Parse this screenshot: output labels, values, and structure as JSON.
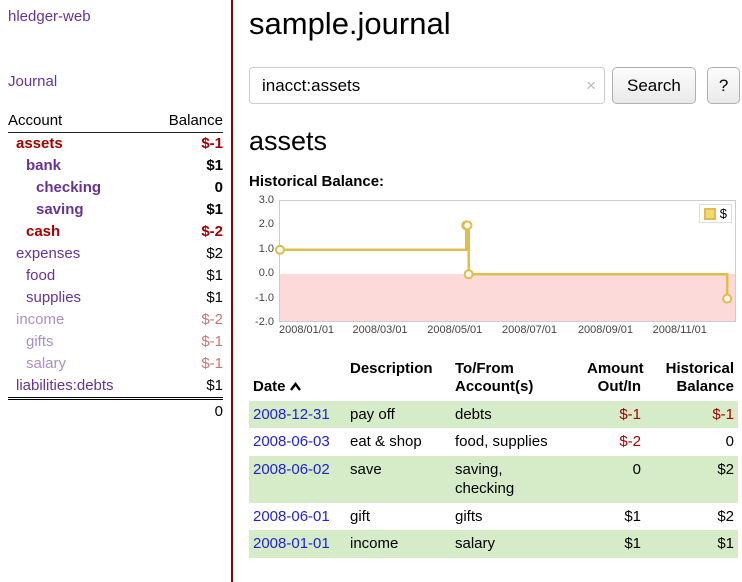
{
  "colors": {
    "purple": "#663399",
    "negative": "#a40000",
    "divider": "#8b0000",
    "link_blue": "#2222cc",
    "row_green": "#d6ecc9",
    "chart_gold": "#e0bc4a",
    "chart_gold_fill": "#f3d878",
    "chart_pink": "#fcdada",
    "plot_border": "#cccccc"
  },
  "sidebar": {
    "app_title": "hledger-web",
    "journal_link": "Journal",
    "accounts": {
      "header_account": "Account",
      "header_balance": "Balance",
      "rows": [
        {
          "name": "assets",
          "balance": "$-1",
          "indent": 0,
          "style": "negstrong"
        },
        {
          "name": "bank",
          "balance": "$1",
          "indent": 1,
          "style": "strong"
        },
        {
          "name": "checking",
          "balance": "0",
          "indent": 2,
          "style": "strong"
        },
        {
          "name": "saving",
          "balance": "$1",
          "indent": 2,
          "style": "strong"
        },
        {
          "name": "cash",
          "balance": "$-2",
          "indent": 1,
          "style": "negstrong"
        },
        {
          "name": "expenses",
          "balance": "$2",
          "indent": 0,
          "style": "normal"
        },
        {
          "name": "food",
          "balance": "$1",
          "indent": 1,
          "style": "normal"
        },
        {
          "name": "supplies",
          "balance": "$1",
          "indent": 1,
          "style": "normal"
        },
        {
          "name": "income",
          "balance": "$-2",
          "indent": 0,
          "style": "faded"
        },
        {
          "name": "gifts",
          "balance": "$-1",
          "indent": 1,
          "style": "faded"
        },
        {
          "name": "salary",
          "balance": "$-1",
          "indent": 1,
          "style": "faded"
        },
        {
          "name": "liabilities:debts",
          "balance": "$1",
          "indent": 0,
          "style": "normal"
        }
      ],
      "total": "0"
    }
  },
  "main": {
    "title": "sample.journal",
    "search": {
      "value": "inacct:assets",
      "clear_icon": "×",
      "button_label": "Search",
      "help_label": "?"
    },
    "account_heading": "assets"
  },
  "chart_data": {
    "type": "line",
    "step": true,
    "title": "Historical Balance:",
    "legend_label": "$",
    "legend_position": "top-right",
    "ylim": [
      -2,
      3
    ],
    "yticks": [
      "3.0",
      "2.0",
      "1.0",
      "0.0",
      "-1.0",
      "-2.0"
    ],
    "xticks": [
      "2008/01/01",
      "2008/03/01",
      "2008/05/01",
      "2008/07/01",
      "2008/09/01",
      "2008/11/01"
    ],
    "xlim": [
      "2008-01-01",
      "2009-01-08"
    ],
    "negative_region": true,
    "series": [
      {
        "name": "$",
        "color": "#e0bc4a",
        "points": [
          [
            "2008-01-01",
            1
          ],
          [
            "2008-06-01",
            2
          ],
          [
            "2008-06-02",
            2
          ],
          [
            "2008-06-03",
            0
          ],
          [
            "2008-12-31",
            -1
          ]
        ]
      }
    ]
  },
  "register": {
    "headers": {
      "date": "Date",
      "sort_icon": "ascending-caret",
      "description": "Description",
      "account": "To/From\nAccount(s)",
      "amount": "Amount\nOut/In",
      "balance": "Historical\nBalance"
    },
    "rows": [
      {
        "date": "2008-12-31",
        "description": "pay off",
        "accounts": "debts",
        "amount": "$-1",
        "balance": "$-1",
        "bg": "green"
      },
      {
        "date": "2008-06-03",
        "description": "eat & shop",
        "accounts": "food, supplies",
        "amount": "$-2",
        "balance": "0",
        "bg": "white"
      },
      {
        "date": "2008-06-02",
        "description": "save",
        "accounts": "saving,\nchecking",
        "amount": "0",
        "balance": "$2",
        "bg": "green"
      },
      {
        "date": "2008-06-01",
        "description": "gift",
        "accounts": "gifts",
        "amount": "$1",
        "balance": "$2",
        "bg": "white"
      },
      {
        "date": "2008-01-01",
        "description": "income",
        "accounts": "salary",
        "amount": "$1",
        "balance": "$1",
        "bg": "green"
      }
    ]
  }
}
